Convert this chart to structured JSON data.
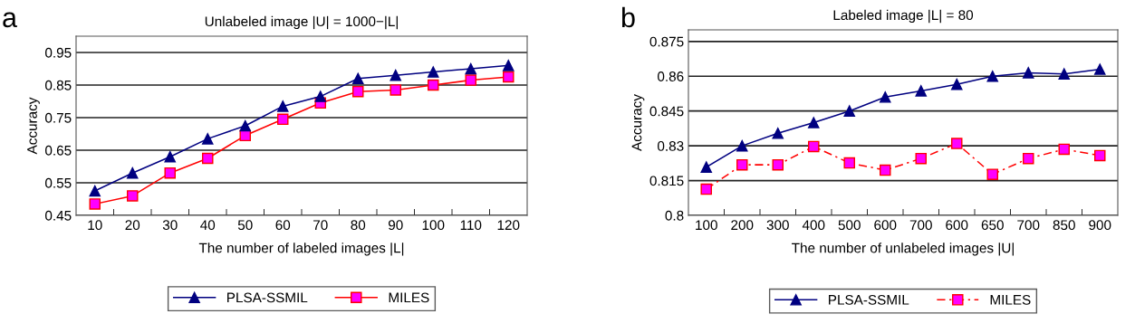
{
  "chart_data": [
    {
      "type": "line",
      "title": "Unlabeled image |U| = 1000−|L|",
      "xlabel": "The number of labeled images |L|",
      "ylabel": "Accuracy",
      "annotations": [
        "a"
      ],
      "categories": [
        "10",
        "20",
        "30",
        "40",
        "50",
        "60",
        "70",
        "80",
        "90",
        "100",
        "110",
        "120"
      ],
      "series": [
        {
          "name": "PLSA-SSMIL",
          "color": "#000080",
          "marker": "triangle",
          "line_style": "solid",
          "values": [
            0.525,
            0.58,
            0.63,
            0.685,
            0.725,
            0.785,
            0.815,
            0.87,
            0.88,
            0.89,
            0.9,
            0.91
          ]
        },
        {
          "name": "MILES",
          "color": "#ff0000",
          "marker": "square",
          "line_style": "solid",
          "values": [
            0.485,
            0.51,
            0.58,
            0.625,
            0.695,
            0.745,
            0.795,
            0.83,
            0.835,
            0.85,
            0.865,
            0.875
          ]
        }
      ],
      "ylim": [
        0.45,
        1.0
      ],
      "yticks": [
        0.45,
        0.55,
        0.65,
        0.75,
        0.85,
        0.95
      ],
      "grid": "y",
      "legend": "bottom"
    },
    {
      "type": "line",
      "title": "Labeled image |L| = 80",
      "xlabel": "The number of unlabeled images |U|",
      "ylabel": "Accuracy",
      "annotations": [
        "b"
      ],
      "categories": [
        "100",
        "200",
        "300",
        "400",
        "500",
        "600",
        "700",
        "600",
        "650",
        "700",
        "850",
        "900"
      ],
      "series": [
        {
          "name": "PLSA-SSMIL",
          "color": "#000080",
          "marker": "triangle",
          "line_style": "solid",
          "values": [
            0.8208,
            0.83,
            0.8354,
            0.84,
            0.845,
            0.851,
            0.8537,
            0.8565,
            0.86,
            0.8615,
            0.861,
            0.863
          ]
        },
        {
          "name": "MILES",
          "color": "#ff0000",
          "marker": "square",
          "line_style": "dashed",
          "values": [
            0.8113,
            0.8218,
            0.8218,
            0.8297,
            0.8226,
            0.8195,
            0.8245,
            0.831,
            0.8177,
            0.8245,
            0.8285,
            0.8258
          ]
        }
      ],
      "ylim": [
        0.8,
        0.88
      ],
      "yticks": [
        0.8,
        0.815,
        0.83,
        0.845,
        0.86,
        0.875
      ],
      "grid": "y",
      "legend": "bottom"
    }
  ]
}
